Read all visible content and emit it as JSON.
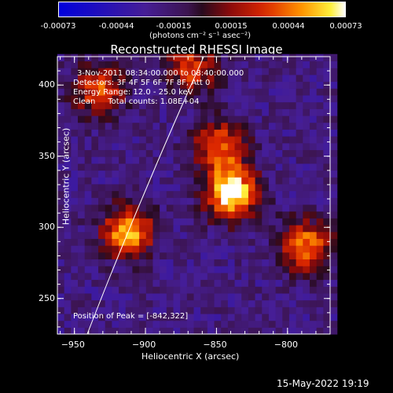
{
  "colorbar": {
    "ticks": [
      "-0.00073",
      "-0.00044",
      "-0.00015",
      "0.00015",
      "0.00044",
      "0.00073"
    ],
    "unit": "(photons cm⁻² s⁻¹ asec⁻²)"
  },
  "chart_data": {
    "type": "heatmap",
    "title": "Reconstructed RHESSI Image",
    "xlabel": "Heliocentric X (arcsec)",
    "ylabel": "Heliocentric Y (arcsec)",
    "xlim": [
      -962,
      -770
    ],
    "ylim": [
      225,
      420
    ],
    "xticks": [
      -950,
      -900,
      -850,
      -800
    ],
    "yticks": [
      250,
      300,
      350,
      400
    ],
    "colorbar_range": [
      -0.00073,
      0.00073
    ],
    "peak_position": [
      -842,
      322
    ],
    "sources": [
      {
        "x": -842,
        "y": 322,
        "intensity": 0.00073
      },
      {
        "x": -915,
        "y": 295,
        "intensity": 0.0005
      },
      {
        "x": -790,
        "y": 285,
        "intensity": 0.0004
      },
      {
        "x": -850,
        "y": 355,
        "intensity": 0.00035
      },
      {
        "x": -935,
        "y": 395,
        "intensity": 0.0003
      },
      {
        "x": -870,
        "y": 410,
        "intensity": 0.00025
      }
    ]
  },
  "annotations": {
    "time": "3-Nov-2011 08:34:00.000 to 08:40:00.000",
    "detectors": "Detectors: 3F 4F 5F 6F 7F 8F, Att 0",
    "energy": "Energy Range: 12.0 - 25.0 keV",
    "clean": "Clean     Total counts: 1.08E+04",
    "peak": "Position of Peak = [-842,322]"
  },
  "datestamp": "15-May-2022 19:19"
}
